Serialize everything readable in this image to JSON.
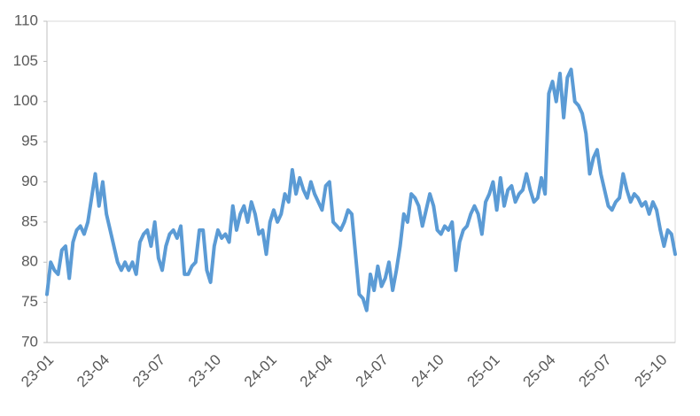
{
  "chart_data": {
    "type": "line",
    "categories": [
      "23-01",
      null,
      null,
      null,
      null,
      null,
      null,
      null,
      null,
      null,
      null,
      null,
      null,
      null,
      null,
      "23-04",
      null,
      null,
      null,
      null,
      null,
      null,
      null,
      null,
      null,
      null,
      null,
      null,
      null,
      null,
      "23-07",
      null,
      null,
      null,
      null,
      null,
      null,
      null,
      null,
      null,
      null,
      null,
      null,
      null,
      null,
      "23-10",
      null,
      null,
      null,
      null,
      null,
      null,
      null,
      null,
      null,
      null,
      null,
      null,
      null,
      null,
      "24-01",
      null,
      null,
      null,
      null,
      null,
      null,
      null,
      null,
      null,
      null,
      null,
      null,
      null,
      null,
      "24-04",
      null,
      null,
      null,
      null,
      null,
      null,
      null,
      null,
      null,
      null,
      null,
      null,
      null,
      null,
      "24-07",
      null,
      null,
      null,
      null,
      null,
      null,
      null,
      null,
      null,
      null,
      null,
      null,
      null,
      null,
      "24-10",
      null,
      null,
      null,
      null,
      null,
      null,
      null,
      null,
      null,
      null,
      null,
      null,
      null,
      null,
      "25-01",
      null,
      null,
      null,
      null,
      null,
      null,
      null,
      null,
      null,
      null,
      null,
      null,
      null,
      null,
      "25-04",
      null,
      null,
      null,
      null,
      null,
      null,
      null,
      null,
      null,
      null,
      null,
      null,
      null,
      null,
      "25-07",
      null,
      null,
      null,
      null,
      null,
      null,
      null,
      null,
      null,
      null,
      null,
      null,
      null,
      null,
      "25-10",
      null,
      null,
      null,
      null
    ],
    "values": [
      76,
      80,
      79,
      78.5,
      81.5,
      82,
      78,
      82.5,
      84,
      84.5,
      83.5,
      85,
      88,
      91,
      87,
      90,
      86,
      84,
      82,
      80,
      79,
      80,
      79,
      80,
      78.5,
      82.5,
      83.5,
      84,
      82,
      85,
      80.5,
      79,
      82,
      83.5,
      84,
      83,
      84.5,
      78.5,
      78.5,
      79.5,
      80,
      84,
      84,
      79,
      77.5,
      82,
      84,
      83,
      83.5,
      82.5,
      87,
      84,
      86,
      87,
      85,
      87.5,
      86,
      83.5,
      84,
      81,
      85,
      86.5,
      85,
      86,
      88.5,
      87.5,
      91.5,
      88.5,
      90.5,
      89,
      88,
      90,
      88.5,
      87.5,
      86.5,
      89.5,
      90,
      85,
      84.5,
      84,
      85,
      86.5,
      86,
      81,
      76,
      75.5,
      74,
      78.5,
      76.5,
      79.5,
      77,
      78,
      80,
      76.5,
      79,
      82,
      86,
      85,
      88.5,
      88,
      87,
      84.5,
      86.5,
      88.5,
      87,
      84,
      83.5,
      84.5,
      84,
      85,
      79,
      82.5,
      84,
      84.5,
      86,
      87,
      86,
      83.5,
      87.5,
      88.5,
      90,
      86.5,
      90.5,
      87,
      89,
      89.5,
      87.5,
      88.5,
      89,
      91,
      89,
      87.5,
      88,
      90.5,
      88.5,
      101,
      102.5,
      100,
      103.5,
      98,
      103,
      104,
      100,
      99.5,
      98.5,
      96,
      91,
      93,
      94,
      91,
      89,
      87,
      86.5,
      87.5,
      88,
      91,
      89,
      87.5,
      88.5,
      88,
      87,
      87.5,
      86,
      87.5,
      86.5,
      84,
      82,
      84,
      83.5,
      81
    ],
    "color": "#5b9bd5",
    "ylim": [
      70,
      110
    ],
    "yticks": [
      70,
      75,
      80,
      85,
      90,
      95,
      100,
      105,
      110
    ],
    "grid": false
  }
}
